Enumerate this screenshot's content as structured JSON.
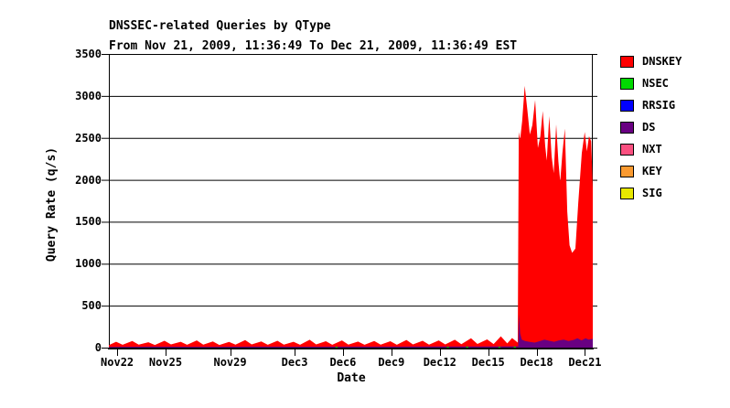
{
  "header": {
    "title": "DNSSEC-related Queries by QType",
    "subtitle": "From Nov 21, 2009, 11:36:49 To Dec 21, 2009, 11:36:49 EST"
  },
  "chart_data": {
    "type": "area",
    "stacked": true,
    "title": "DNSSEC-related Queries by QType",
    "subtitle": "From Nov 21, 2009, 11:36:49 To Dec 21, 2009, 11:36:49 EST",
    "xlabel": "Date",
    "ylabel": "Query Rate (q/s)",
    "x_unit_note": "x values are days since Nov 21, 2009 11:36:49 EST",
    "xlim": [
      0,
      30
    ],
    "ylim": [
      0,
      3500
    ],
    "grid": "horizontal",
    "y_ticks": [
      0,
      500,
      1000,
      1500,
      2000,
      2500,
      3000,
      3500
    ],
    "x_ticks": [
      {
        "day": 0.516,
        "label": "Nov22"
      },
      {
        "day": 3.516,
        "label": "Nov25"
      },
      {
        "day": 7.516,
        "label": "Nov29"
      },
      {
        "day": 11.516,
        "label": "Dec3"
      },
      {
        "day": 14.516,
        "label": "Dec6"
      },
      {
        "day": 17.516,
        "label": "Dec9"
      },
      {
        "day": 20.516,
        "label": "Dec12"
      },
      {
        "day": 23.516,
        "label": "Dec15"
      },
      {
        "day": 26.516,
        "label": "Dec18"
      },
      {
        "day": 29.516,
        "label": "Dec21"
      }
    ],
    "legend_position": "right",
    "legend": [
      {
        "label": "DNSKEY",
        "color": "#ff0000"
      },
      {
        "label": "NSEC",
        "color": "#00d900"
      },
      {
        "label": "RRSIG",
        "color": "#0000ff"
      },
      {
        "label": "DS",
        "color": "#690082"
      },
      {
        "label": "NXT",
        "color": "#fa5080"
      },
      {
        "label": "KEY",
        "color": "#fa9a30"
      },
      {
        "label": "SIG",
        "color": "#e8e800"
      }
    ],
    "series": [
      {
        "name": "DNSKEY",
        "color": "#ff0000",
        "points": [
          [
            0,
            30
          ],
          [
            0.45,
            70
          ],
          [
            0.85,
            34
          ],
          [
            1.45,
            78
          ],
          [
            1.85,
            36
          ],
          [
            2.45,
            64
          ],
          [
            2.85,
            32
          ],
          [
            3.45,
            82
          ],
          [
            3.85,
            38
          ],
          [
            4.45,
            70
          ],
          [
            4.85,
            34
          ],
          [
            5.45,
            86
          ],
          [
            5.85,
            36
          ],
          [
            6.45,
            74
          ],
          [
            6.85,
            32
          ],
          [
            7.45,
            68
          ],
          [
            7.85,
            36
          ],
          [
            8.45,
            90
          ],
          [
            8.85,
            38
          ],
          [
            9.45,
            74
          ],
          [
            9.85,
            34
          ],
          [
            10.45,
            82
          ],
          [
            10.85,
            36
          ],
          [
            11.45,
            70
          ],
          [
            11.85,
            34
          ],
          [
            12.45,
            94
          ],
          [
            12.85,
            38
          ],
          [
            13.45,
            76
          ],
          [
            13.85,
            34
          ],
          [
            14.45,
            86
          ],
          [
            14.85,
            36
          ],
          [
            15.45,
            72
          ],
          [
            15.85,
            34
          ],
          [
            16.45,
            80
          ],
          [
            16.85,
            36
          ],
          [
            17.45,
            76
          ],
          [
            17.85,
            34
          ],
          [
            18.45,
            92
          ],
          [
            18.85,
            38
          ],
          [
            19.45,
            82
          ],
          [
            19.85,
            36
          ],
          [
            20.45,
            86
          ],
          [
            20.85,
            38
          ],
          [
            21.45,
            94
          ],
          [
            21.85,
            40
          ],
          [
            22.45,
            112
          ],
          [
            22.85,
            44
          ],
          [
            23.45,
            98
          ],
          [
            23.85,
            42
          ],
          [
            24.3,
            135
          ],
          [
            24.7,
            50
          ],
          [
            25.0,
            115
          ],
          [
            25.35,
            60
          ],
          [
            25.41,
            2570
          ],
          [
            25.5,
            2480
          ],
          [
            25.62,
            2700
          ],
          [
            25.78,
            3120
          ],
          [
            25.95,
            2820
          ],
          [
            26.1,
            2540
          ],
          [
            26.25,
            2650
          ],
          [
            26.43,
            2950
          ],
          [
            26.6,
            2380
          ],
          [
            26.75,
            2520
          ],
          [
            26.9,
            2820
          ],
          [
            27.05,
            2400
          ],
          [
            27.15,
            2230
          ],
          [
            27.3,
            2760
          ],
          [
            27.45,
            2280
          ],
          [
            27.58,
            2080
          ],
          [
            27.73,
            2660
          ],
          [
            27.87,
            2220
          ],
          [
            27.98,
            1980
          ],
          [
            28.12,
            2320
          ],
          [
            28.27,
            2610
          ],
          [
            28.42,
            1620
          ],
          [
            28.56,
            1220
          ],
          [
            28.72,
            1130
          ],
          [
            28.92,
            1180
          ],
          [
            29.1,
            1720
          ],
          [
            29.32,
            2320
          ],
          [
            29.5,
            2570
          ],
          [
            29.63,
            2340
          ],
          [
            29.77,
            2520
          ],
          [
            29.9,
            2460
          ],
          [
            30,
            1900
          ]
        ]
      },
      {
        "name": "DS",
        "color": "#690082",
        "points": [
          [
            0,
            10
          ],
          [
            3,
            12
          ],
          [
            6,
            10
          ],
          [
            9,
            12
          ],
          [
            12,
            11
          ],
          [
            15,
            12
          ],
          [
            18,
            12
          ],
          [
            21,
            13
          ],
          [
            23,
            14
          ],
          [
            25,
            15
          ],
          [
            25.38,
            16
          ],
          [
            25.42,
            400
          ],
          [
            25.5,
            170
          ],
          [
            25.6,
            95
          ],
          [
            25.8,
            80
          ],
          [
            26.1,
            68
          ],
          [
            26.4,
            60
          ],
          [
            26.7,
            76
          ],
          [
            27,
            95
          ],
          [
            27.3,
            82
          ],
          [
            27.6,
            70
          ],
          [
            27.9,
            86
          ],
          [
            28.2,
            96
          ],
          [
            28.5,
            78
          ],
          [
            28.8,
            92
          ],
          [
            29.05,
            112
          ],
          [
            29.3,
            86
          ],
          [
            29.55,
            112
          ],
          [
            29.75,
            95
          ],
          [
            30,
            105
          ]
        ]
      },
      {
        "name": "NSEC",
        "color": "#00d900",
        "specks": [
          {
            "day": 14.1,
            "value": 10
          },
          {
            "day": 21.0,
            "value": 10
          },
          {
            "day": 22.2,
            "value": 12
          },
          {
            "day": 24.2,
            "value": 10
          },
          {
            "day": 25.15,
            "value": 12
          }
        ]
      }
    ]
  }
}
